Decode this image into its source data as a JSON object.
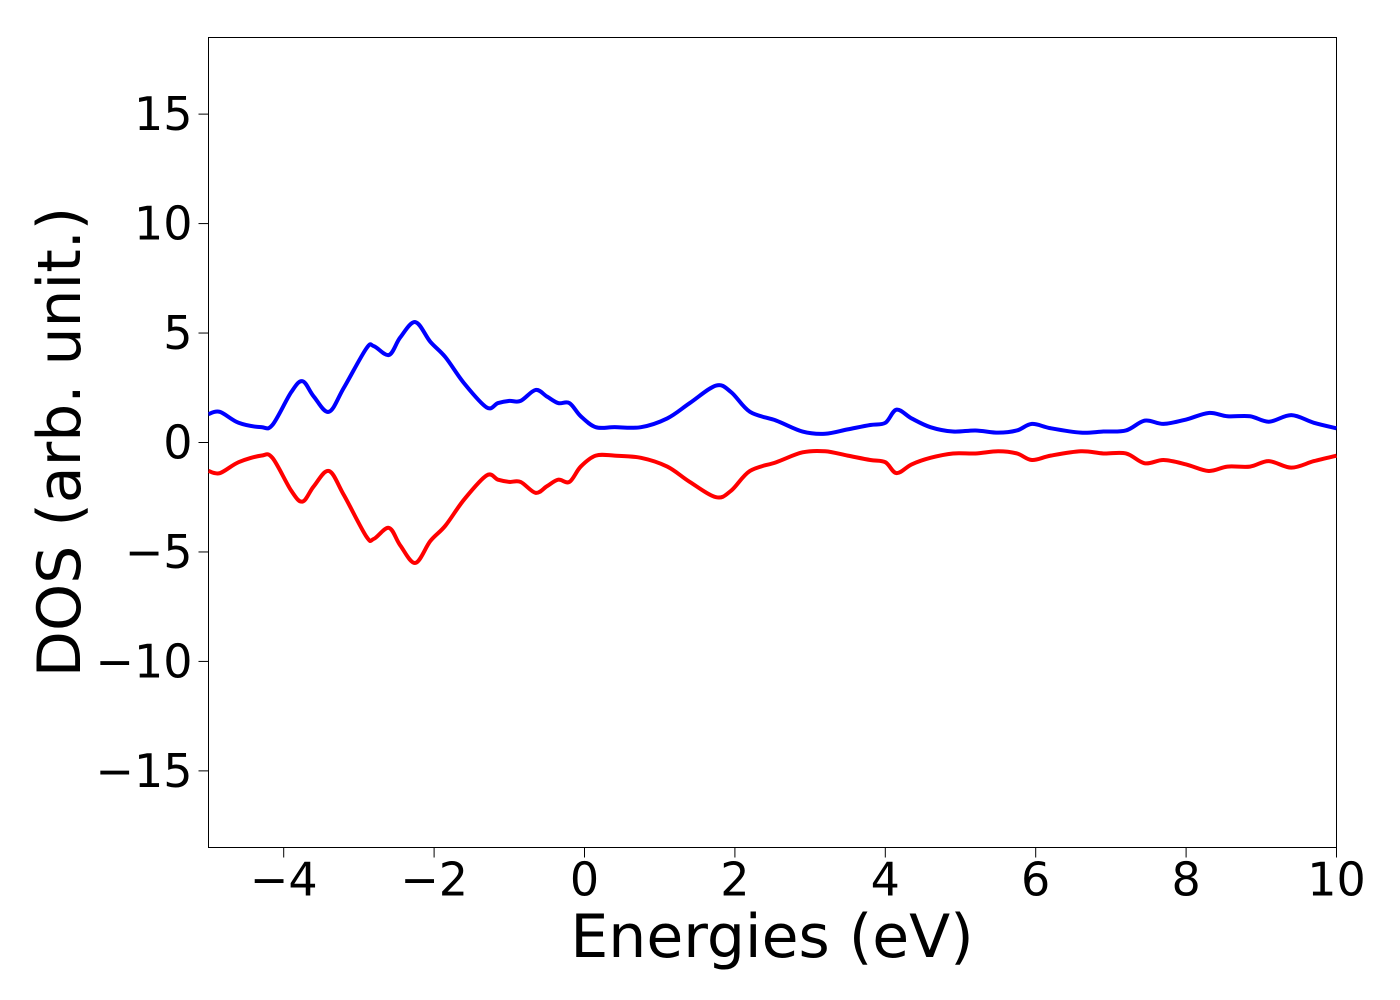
{
  "chart_data": {
    "type": "line",
    "title": "",
    "xlabel": "Energies (eV)",
    "ylabel": "DOS (arb. unit.)",
    "xlim": [
      -5,
      10
    ],
    "ylim": [
      -18.5,
      18.5
    ],
    "xticks": [
      -4,
      -2,
      0,
      2,
      4,
      6,
      8,
      10
    ],
    "xtick_labels": [
      "−4",
      "−2",
      "0",
      "2",
      "4",
      "6",
      "8",
      "10"
    ],
    "yticks": [
      15,
      10,
      5,
      0,
      -5,
      -10,
      -15
    ],
    "ytick_labels": [
      "15",
      "10",
      "5",
      "0",
      "−5",
      "−10",
      "−15"
    ],
    "grid": false,
    "legend": "none",
    "series": [
      {
        "color": "#0000ff",
        "x": [
          -5.0,
          -4.85,
          -4.6,
          -4.3,
          -4.15,
          -3.9,
          -3.75,
          -3.6,
          -3.4,
          -3.2,
          -2.9,
          -2.8,
          -2.6,
          -2.45,
          -2.25,
          -2.05,
          -1.85,
          -1.6,
          -1.3,
          -1.15,
          -1.0,
          -0.85,
          -0.65,
          -0.5,
          -0.35,
          -0.2,
          -0.05,
          0.15,
          0.4,
          0.75,
          1.1,
          1.4,
          1.75,
          1.95,
          2.2,
          2.55,
          2.9,
          3.2,
          3.5,
          3.8,
          4.0,
          4.15,
          4.35,
          4.6,
          4.9,
          5.2,
          5.5,
          5.75,
          5.95,
          6.2,
          6.6,
          6.9,
          7.2,
          7.45,
          7.7,
          8.0,
          8.3,
          8.55,
          8.85,
          9.1,
          9.4,
          9.7,
          10.0
        ],
        "y": [
          1.3,
          1.4,
          0.9,
          0.7,
          0.8,
          2.3,
          2.8,
          2.1,
          1.4,
          2.5,
          4.3,
          4.4,
          4.0,
          4.8,
          5.5,
          4.6,
          3.9,
          2.7,
          1.6,
          1.8,
          1.9,
          1.9,
          2.4,
          2.1,
          1.8,
          1.8,
          1.2,
          0.7,
          0.7,
          0.7,
          1.1,
          1.8,
          2.6,
          2.3,
          1.4,
          1.0,
          0.5,
          0.4,
          0.6,
          0.8,
          0.9,
          1.5,
          1.1,
          0.7,
          0.5,
          0.55,
          0.45,
          0.55,
          0.85,
          0.65,
          0.45,
          0.5,
          0.55,
          1.0,
          0.85,
          1.05,
          1.35,
          1.2,
          1.2,
          0.95,
          1.25,
          0.9,
          0.65
        ]
      },
      {
        "color": "#ff0000",
        "x": [
          -5.0,
          -4.85,
          -4.6,
          -4.3,
          -4.15,
          -3.9,
          -3.75,
          -3.6,
          -3.4,
          -3.2,
          -2.9,
          -2.8,
          -2.6,
          -2.45,
          -2.25,
          -2.05,
          -1.85,
          -1.6,
          -1.3,
          -1.15,
          -1.0,
          -0.85,
          -0.65,
          -0.5,
          -0.35,
          -0.2,
          -0.05,
          0.15,
          0.4,
          0.75,
          1.1,
          1.4,
          1.75,
          1.95,
          2.2,
          2.55,
          2.9,
          3.2,
          3.5,
          3.8,
          4.0,
          4.15,
          4.35,
          4.6,
          4.9,
          5.2,
          5.5,
          5.75,
          5.95,
          6.2,
          6.6,
          6.9,
          7.2,
          7.45,
          7.7,
          8.0,
          8.3,
          8.55,
          8.85,
          9.1,
          9.4,
          9.7,
          10.0
        ],
        "y": [
          -1.3,
          -1.4,
          -0.9,
          -0.6,
          -0.7,
          -2.2,
          -2.7,
          -2.0,
          -1.3,
          -2.4,
          -4.3,
          -4.4,
          -3.9,
          -4.7,
          -5.5,
          -4.5,
          -3.8,
          -2.6,
          -1.5,
          -1.7,
          -1.8,
          -1.8,
          -2.3,
          -2.0,
          -1.7,
          -1.8,
          -1.1,
          -0.6,
          -0.6,
          -0.7,
          -1.1,
          -1.8,
          -2.5,
          -2.2,
          -1.3,
          -0.9,
          -0.45,
          -0.4,
          -0.6,
          -0.8,
          -0.9,
          -1.4,
          -1.0,
          -0.7,
          -0.5,
          -0.5,
          -0.4,
          -0.5,
          -0.8,
          -0.6,
          -0.4,
          -0.5,
          -0.5,
          -0.95,
          -0.8,
          -1.0,
          -1.3,
          -1.1,
          -1.1,
          -0.85,
          -1.15,
          -0.85,
          -0.6
        ]
      }
    ]
  }
}
